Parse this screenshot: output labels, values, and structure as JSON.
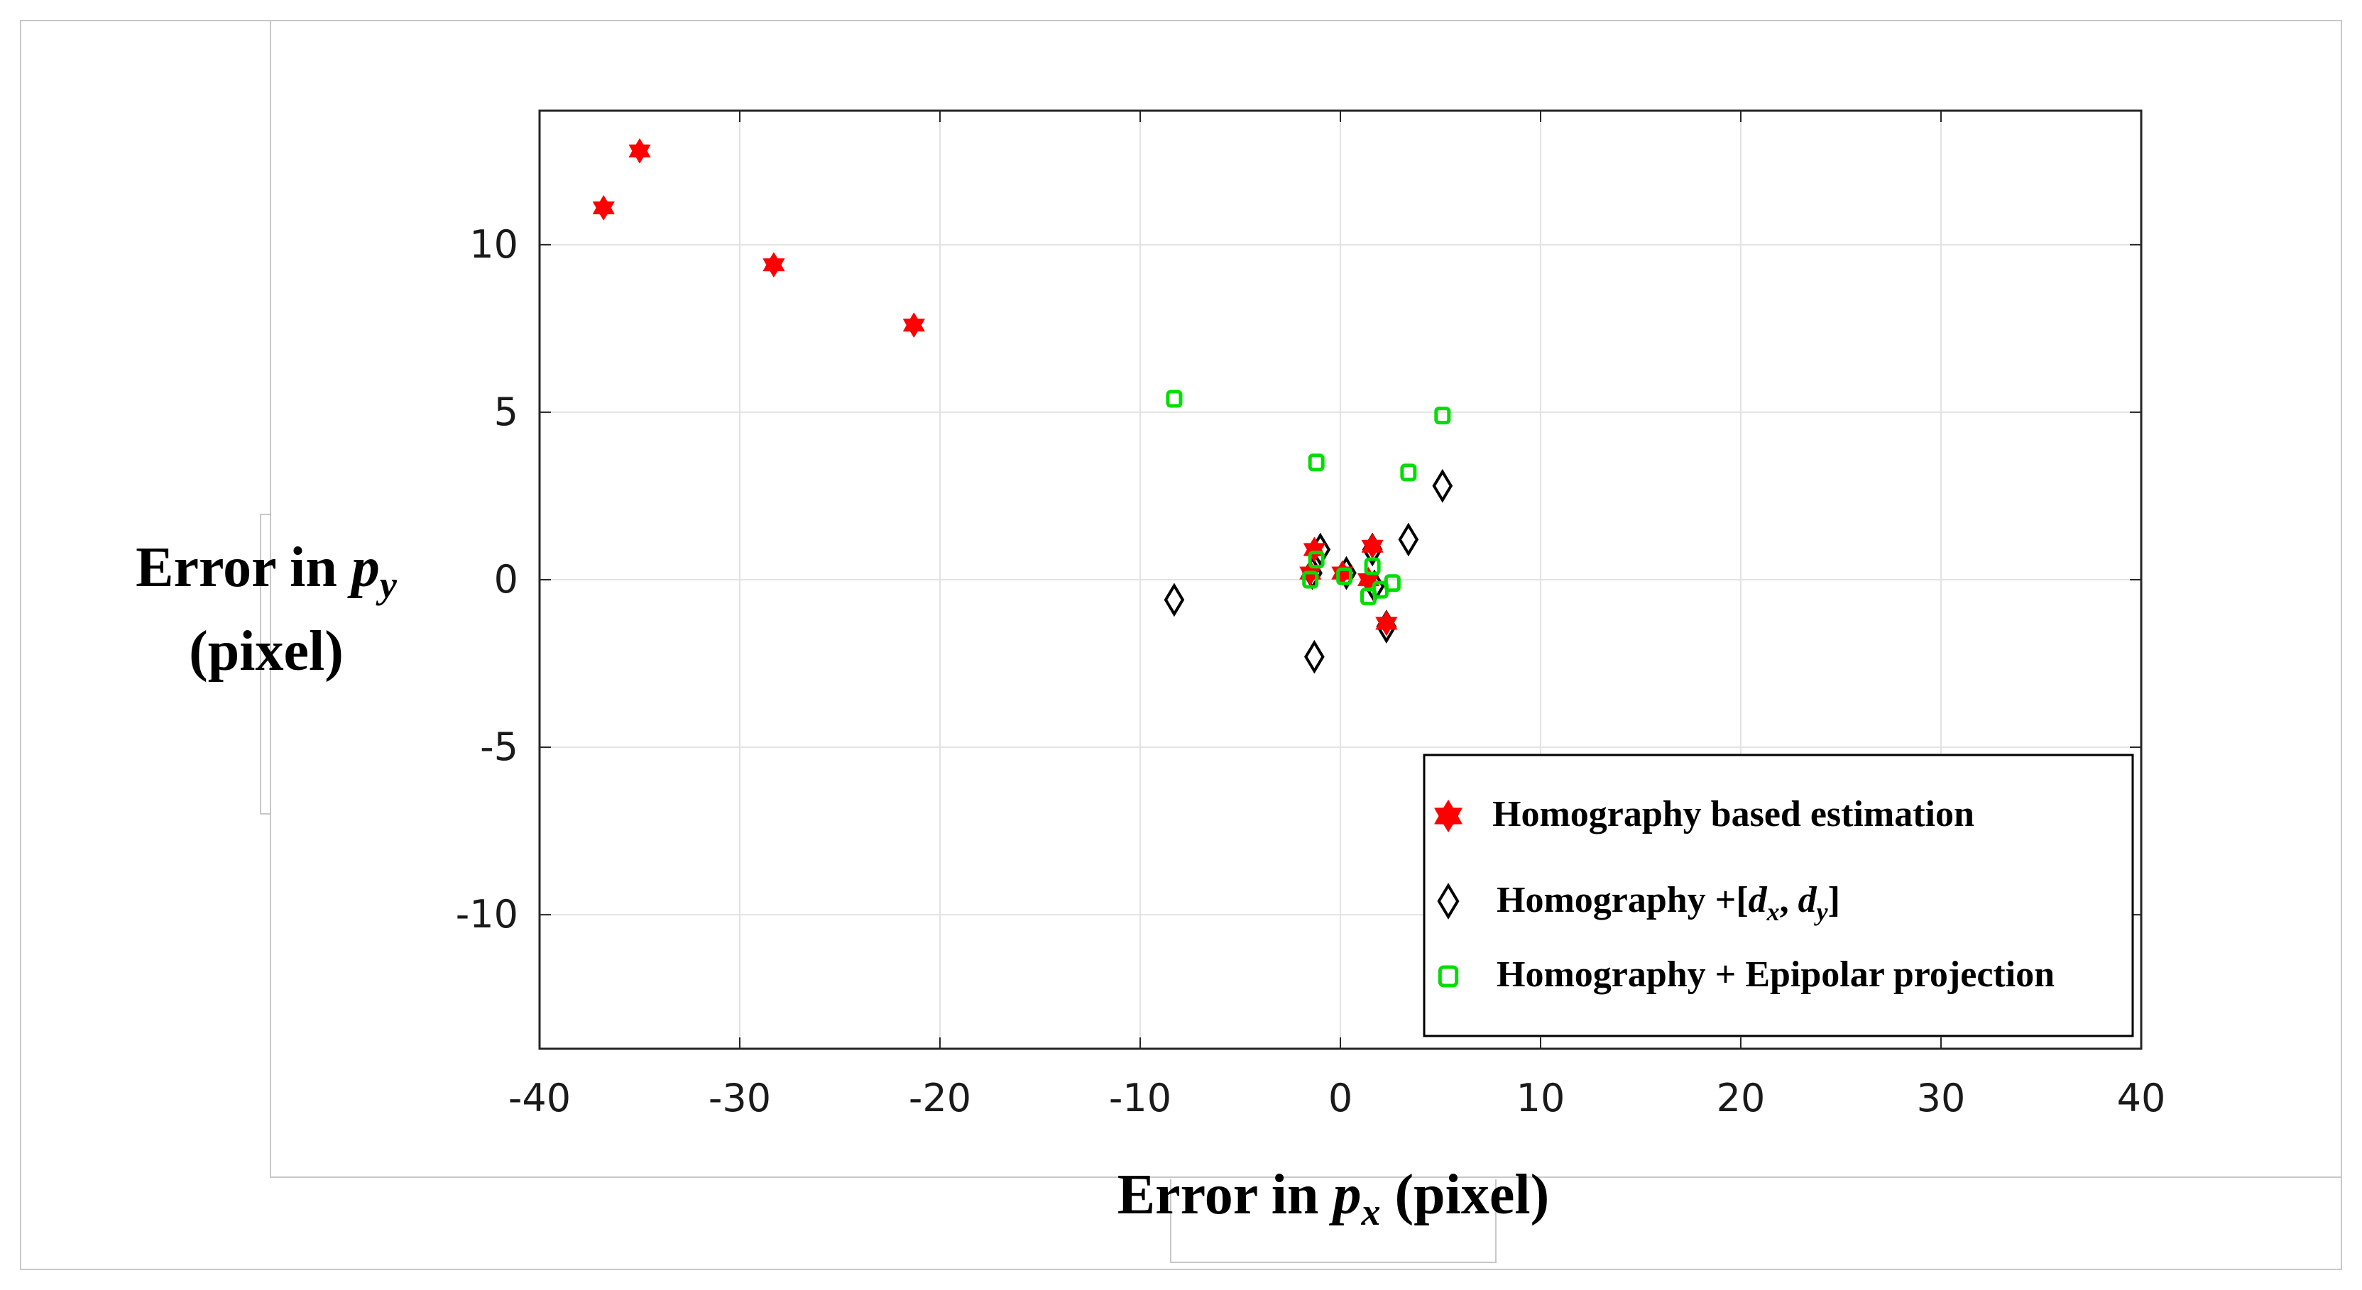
{
  "chart_data": {
    "type": "scatter",
    "title": "",
    "xlabel": {
      "pre": "Error in ",
      "var": "p",
      "sub": "x",
      "post": " (pixel)"
    },
    "ylabel": {
      "line1_pre": "Error in ",
      "var": "p",
      "sub": "y",
      "line2": "(pixel)"
    },
    "xlim": [
      -40,
      40
    ],
    "ylim": [
      -14,
      14
    ],
    "x_ticks": [
      -40,
      -30,
      -20,
      -10,
      0,
      10,
      20,
      30,
      40
    ],
    "y_ticks": [
      -10,
      -5,
      0,
      5,
      10
    ],
    "grid": true,
    "legend_position": "bottom-right",
    "series": [
      {
        "name": "Homography based estimation",
        "marker": "star",
        "color": "#ff0000",
        "points": [
          [
            -36.8,
            11.1
          ],
          [
            -35.0,
            12.8
          ],
          [
            -28.3,
            9.4
          ],
          [
            -21.3,
            7.6
          ],
          [
            -1.3,
            0.9
          ],
          [
            -1.5,
            0.2
          ],
          [
            0.1,
            0.2
          ],
          [
            1.6,
            1.0
          ],
          [
            2.3,
            -1.3
          ],
          [
            1.4,
            0.0
          ]
        ]
      },
      {
        "name": "Homography +[d_x, d_y]",
        "name_parts": {
          "pre": "Homography +[",
          "v1": "d",
          "s1": "x",
          "sep": ", ",
          "v2": "d",
          "s2": "y",
          "post": "]"
        },
        "marker": "diamond",
        "color": "#000000",
        "points": [
          [
            -8.3,
            -0.6
          ],
          [
            -1.3,
            -2.3
          ],
          [
            -1.0,
            0.9
          ],
          [
            -1.4,
            0.2
          ],
          [
            0.3,
            0.2
          ],
          [
            1.6,
            0.9
          ],
          [
            1.7,
            -0.2
          ],
          [
            2.3,
            -1.4
          ],
          [
            3.4,
            1.2
          ],
          [
            5.1,
            2.8
          ]
        ]
      },
      {
        "name": "Homography + Epipolar projection",
        "marker": "square",
        "color": "#00dd00",
        "points": [
          [
            -8.3,
            5.4
          ],
          [
            -1.2,
            3.5
          ],
          [
            3.4,
            3.2
          ],
          [
            5.1,
            4.9
          ],
          [
            -1.5,
            0.0
          ],
          [
            -1.2,
            0.6
          ],
          [
            0.2,
            0.1
          ],
          [
            1.4,
            -0.5
          ],
          [
            1.6,
            0.4
          ],
          [
            2.6,
            -0.1
          ],
          [
            2.0,
            -0.3
          ]
        ]
      }
    ]
  }
}
